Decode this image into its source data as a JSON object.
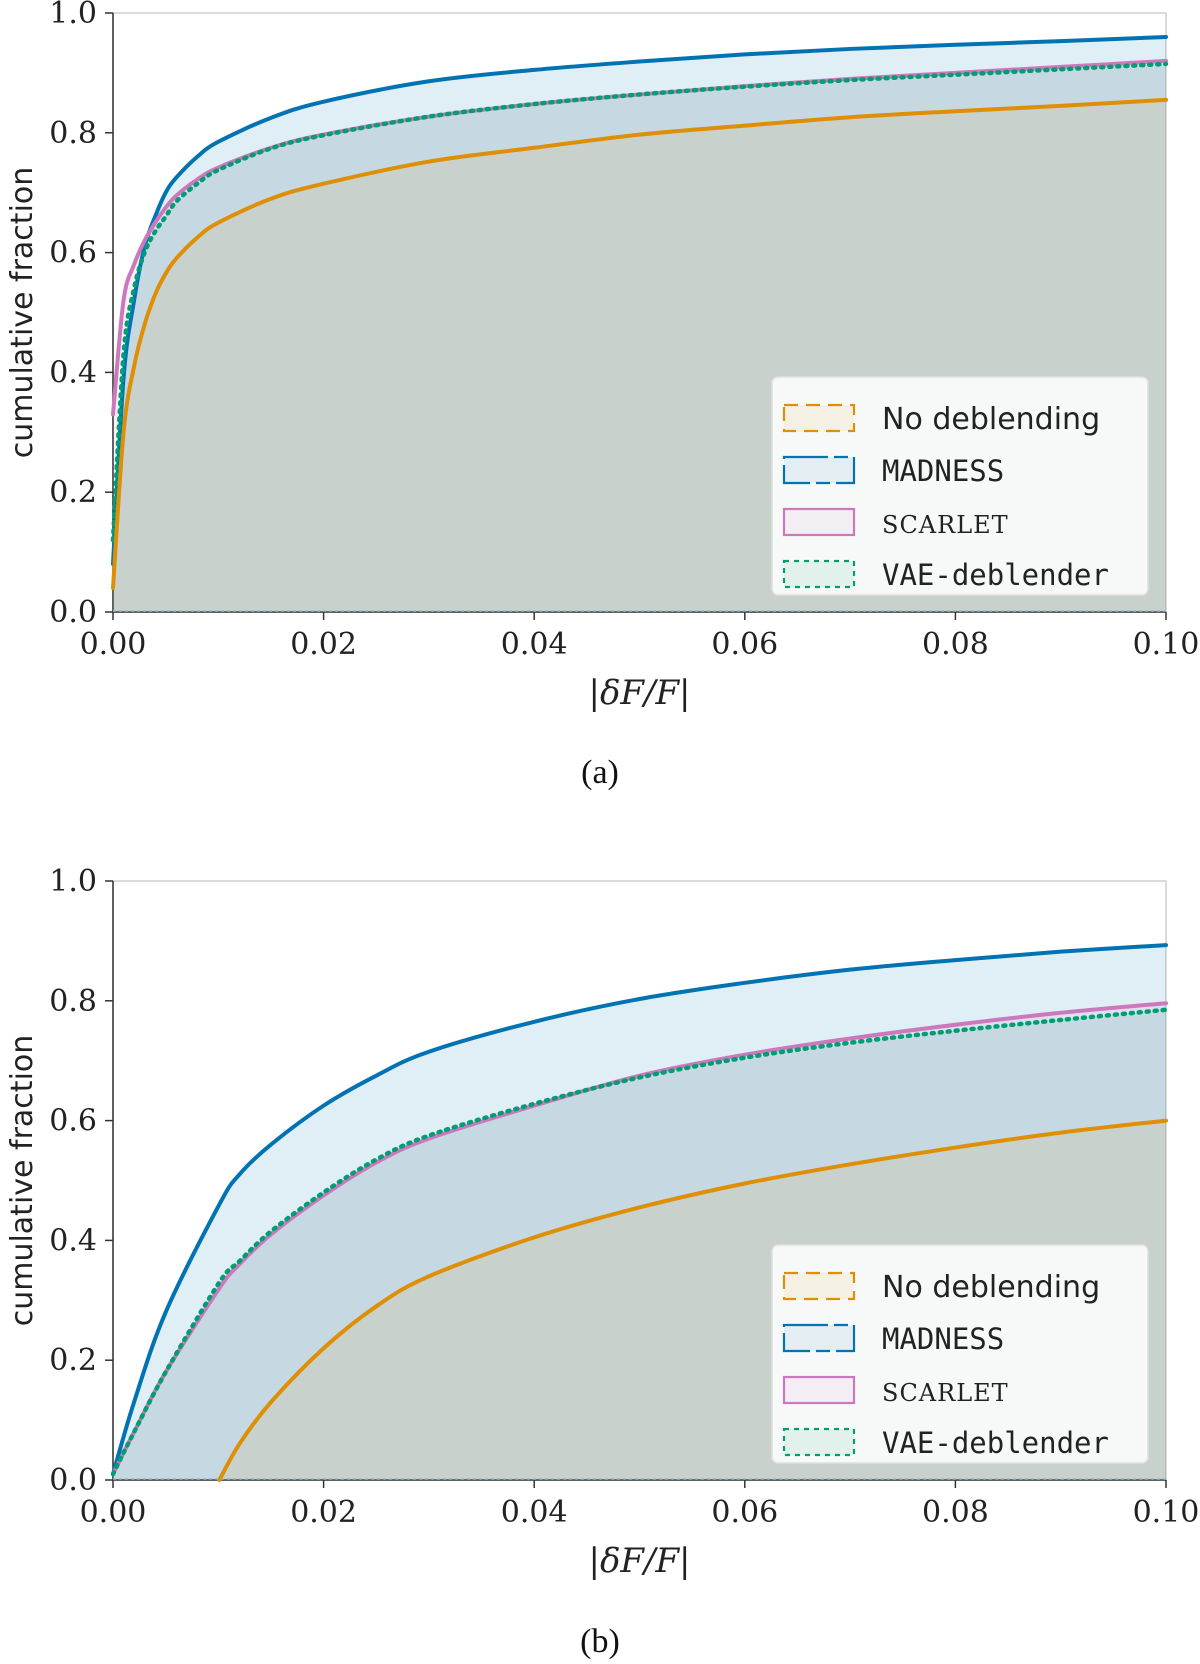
{
  "chart_data": [
    {
      "panel": "(a)",
      "type": "line",
      "xlabel": "|δF/F|",
      "ylabel": "cumulative fraction",
      "xlim": [
        0.0,
        0.1
      ],
      "ylim": [
        0.0,
        1.0
      ],
      "xticks": [
        "0.00",
        "0.02",
        "0.04",
        "0.06",
        "0.08",
        "0.10"
      ],
      "yticks": [
        "0.0",
        "0.2",
        "0.4",
        "0.6",
        "0.8",
        "1.0"
      ],
      "legend_position": "lower-right",
      "fill_under": true,
      "grid": false,
      "x": [
        0.0,
        0.001,
        0.002,
        0.003,
        0.004,
        0.005,
        0.006,
        0.008,
        0.01,
        0.015,
        0.02,
        0.03,
        0.04,
        0.05,
        0.06,
        0.07,
        0.08,
        0.09,
        0.1
      ],
      "series": [
        {
          "name": "No deblending",
          "color": "#DE8F05",
          "style": "solid",
          "values": [
            0.04,
            0.3,
            0.41,
            0.48,
            0.53,
            0.565,
            0.59,
            0.625,
            0.65,
            0.69,
            0.715,
            0.752,
            0.775,
            0.797,
            0.812,
            0.826,
            0.836,
            0.845,
            0.855
          ]
        },
        {
          "name": "MADNESS",
          "color": "#0173B2",
          "style": "solid",
          "values": [
            0.08,
            0.39,
            0.52,
            0.61,
            0.66,
            0.7,
            0.725,
            0.76,
            0.785,
            0.825,
            0.852,
            0.886,
            0.905,
            0.919,
            0.931,
            0.94,
            0.947,
            0.953,
            0.96
          ]
        },
        {
          "name": "SCARLET",
          "color": "#CC78BC",
          "style": "solid",
          "values": [
            0.33,
            0.52,
            0.58,
            0.62,
            0.65,
            0.675,
            0.695,
            0.722,
            0.742,
            0.775,
            0.797,
            0.827,
            0.848,
            0.864,
            0.878,
            0.89,
            0.9,
            0.91,
            0.92
          ]
        },
        {
          "name": "VAE-deblender",
          "color": "#029E73",
          "style": "dotted",
          "values": [
            0.12,
            0.43,
            0.54,
            0.6,
            0.635,
            0.66,
            0.685,
            0.715,
            0.738,
            0.774,
            0.796,
            0.827,
            0.848,
            0.864,
            0.877,
            0.888,
            0.897,
            0.906,
            0.915
          ]
        }
      ]
    },
    {
      "panel": "(b)",
      "type": "line",
      "xlabel": "|δF/F|",
      "ylabel": "cumulative fraction",
      "xlim": [
        0.0,
        0.1
      ],
      "ylim": [
        0.0,
        1.0
      ],
      "xticks": [
        "0.00",
        "0.02",
        "0.04",
        "0.06",
        "0.08",
        "0.10"
      ],
      "yticks": [
        "0.0",
        "0.2",
        "0.4",
        "0.6",
        "0.8",
        "1.0"
      ],
      "legend_position": "lower-right",
      "fill_under": true,
      "grid": false,
      "x": [
        0.0,
        0.002,
        0.005,
        0.0101,
        0.012,
        0.015,
        0.02,
        0.025,
        0.03,
        0.04,
        0.05,
        0.06,
        0.07,
        0.08,
        0.09,
        0.1
      ],
      "series": [
        {
          "name": "No deblending",
          "color": "#DE8F05",
          "style": "solid",
          "values": [
            0.0,
            0.0,
            0.0,
            0.0,
            0.06,
            0.13,
            0.22,
            0.29,
            0.34,
            0.405,
            0.455,
            0.495,
            0.527,
            0.555,
            0.58,
            0.6
          ]
        },
        {
          "name": "MADNESS",
          "color": "#0173B2",
          "style": "solid",
          "values": [
            0.01,
            0.13,
            0.28,
            0.46,
            0.51,
            0.56,
            0.625,
            0.675,
            0.715,
            0.765,
            0.803,
            0.83,
            0.852,
            0.868,
            0.882,
            0.893
          ]
        },
        {
          "name": "SCARLET",
          "color": "#CC78BC",
          "style": "solid",
          "values": [
            0.01,
            0.08,
            0.18,
            0.32,
            0.36,
            0.41,
            0.475,
            0.53,
            0.57,
            0.625,
            0.675,
            0.71,
            0.737,
            0.76,
            0.78,
            0.796
          ]
        },
        {
          "name": "VAE-deblender",
          "color": "#029E73",
          "style": "dotted",
          "values": [
            0.01,
            0.08,
            0.18,
            0.33,
            0.365,
            0.415,
            0.48,
            0.535,
            0.575,
            0.628,
            0.672,
            0.705,
            0.73,
            0.75,
            0.768,
            0.785
          ]
        }
      ]
    }
  ],
  "captions": [
    "(a)",
    "(b)"
  ]
}
